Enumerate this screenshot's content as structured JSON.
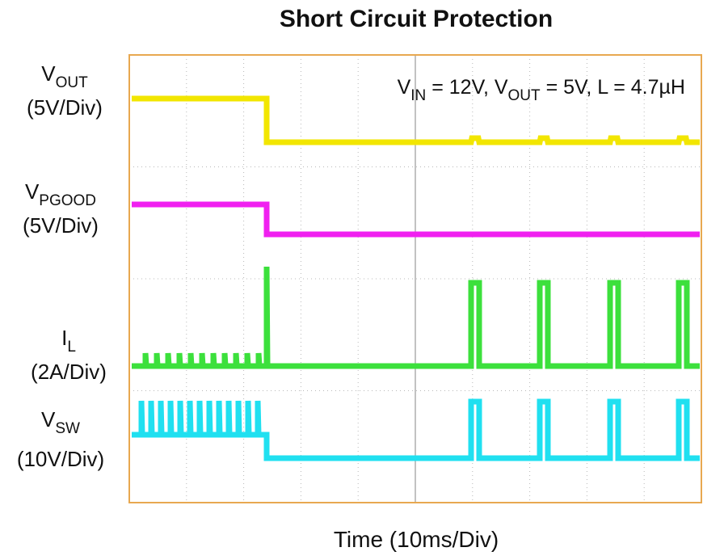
{
  "title": "Short Circuit Protection",
  "annotation": {
    "p1": "V",
    "s1": "IN",
    "p2": " = 12V, V",
    "s2": "OUT",
    "p3": " = 5V, L = 4.7µH"
  },
  "channels": [
    {
      "name": "V",
      "sub": "OUT",
      "scale": "(5V/Div)"
    },
    {
      "name": "V",
      "sub": "PGOOD",
      "scale": "(5V/Div)"
    },
    {
      "name": "I",
      "sub": "L",
      "scale": "(2A/Div)"
    },
    {
      "name": "V",
      "sub": "SW",
      "scale": "(10V/Div)"
    }
  ],
  "x_label": "Time (10ms/Div)"
}
